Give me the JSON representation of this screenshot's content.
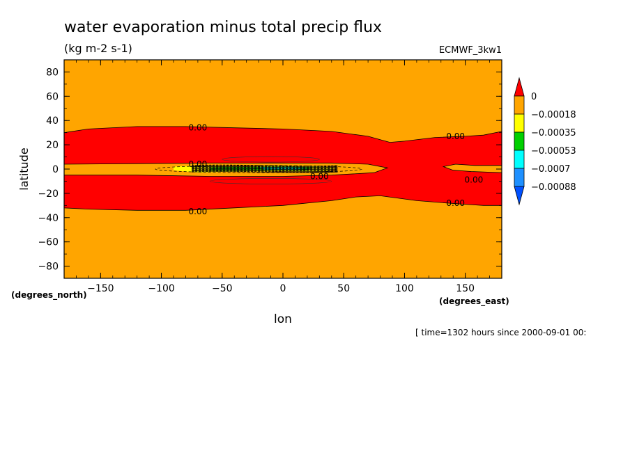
{
  "chart_data": {
    "type": "heatmap",
    "title": "water evaporation minus total precip flux",
    "subtitle": "(kg m-2 s-1)",
    "dataset": "ECMWF_3kw1",
    "xlabel": "lon",
    "ylabel": "latitude",
    "x_unit_label": "(degrees_east)",
    "y_unit_label": "(degrees_north)",
    "time_note": "[ time=1302 hours since 2000-09-01 00:",
    "xlim": [
      -180,
      180
    ],
    "ylim": [
      -90,
      90
    ],
    "x_ticks": [
      -150,
      -100,
      -50,
      0,
      50,
      100,
      150
    ],
    "y_ticks": [
      80,
      60,
      40,
      20,
      0,
      -20,
      -40,
      -60,
      -80
    ],
    "colorbar": {
      "labels": [
        "0",
        "-0.00018",
        "-0.00035",
        "-0.00053",
        "-0.0007",
        "-0.00088"
      ],
      "colors": [
        "#ff0000",
        "#ffa500",
        "#ffff00",
        "#00d000",
        "#00ffff",
        "#1e90ff",
        "#0050ff"
      ]
    },
    "contour_labels": [
      {
        "text": "0.00",
        "lon": -70,
        "lat": 34
      },
      {
        "text": "0.00",
        "lon": -70,
        "lat": 4
      },
      {
        "text": "0.00",
        "lon": 30,
        "lat": -6
      },
      {
        "text": "0.00",
        "lon": 142,
        "lat": 27
      },
      {
        "text": "0.00",
        "lon": 157,
        "lat": -9
      },
      {
        "text": "0.00",
        "lon": 142,
        "lat": -28
      },
      {
        "text": "0.00",
        "lon": -70,
        "lat": -35
      }
    ]
  }
}
